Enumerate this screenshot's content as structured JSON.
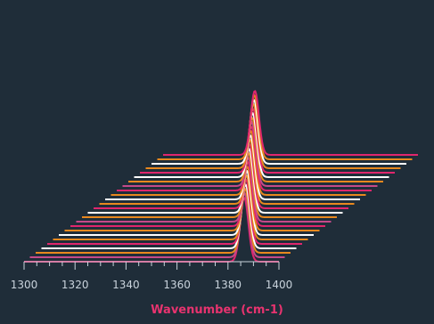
{
  "chart_data": {
    "type": "line",
    "subtype": "waterfall-3d",
    "title": "",
    "xlabel": "Wavenumber (cm-1)",
    "ylabel": "",
    "xlim": [
      1300,
      1400
    ],
    "xticks": [
      1300,
      1320,
      1340,
      1360,
      1380,
      1400
    ],
    "peak_height": 1.0,
    "peak_width_cm1": 1.6,
    "grid": false,
    "legend": "none",
    "palette": [
      "#e0266d",
      "#e8881e",
      "#ffffff",
      "#e8881e",
      "#e0266d",
      "#ffffff",
      "#e8881e",
      "#c44a8a"
    ],
    "series": [
      {
        "color": "#e0266d",
        "peak": 1336.0
      },
      {
        "color": "#e8881e",
        "peak": 1338.1
      },
      {
        "color": "#ffffff",
        "peak": 1340.2
      },
      {
        "color": "#e8881e",
        "peak": 1342.3
      },
      {
        "color": "#e0266d",
        "peak": 1344.4
      },
      {
        "color": "#ffffff",
        "peak": 1346.5
      },
      {
        "color": "#e8881e",
        "peak": 1348.6
      },
      {
        "color": "#c44a8a",
        "peak": 1350.7
      },
      {
        "color": "#e0266d",
        "peak": 1352.8
      },
      {
        "color": "#e8881e",
        "peak": 1354.9
      },
      {
        "color": "#ffffff",
        "peak": 1357.0
      },
      {
        "color": "#e8881e",
        "peak": 1359.1
      },
      {
        "color": "#e0266d",
        "peak": 1361.2
      },
      {
        "color": "#ffffff",
        "peak": 1363.3
      },
      {
        "color": "#e8881e",
        "peak": 1365.4
      },
      {
        "color": "#c44a8a",
        "peak": 1367.5
      },
      {
        "color": "#e0266d",
        "peak": 1369.6
      },
      {
        "color": "#e8881e",
        "peak": 1371.7
      },
      {
        "color": "#ffffff",
        "peak": 1373.8
      },
      {
        "color": "#e8881e",
        "peak": 1375.9
      },
      {
        "color": "#e0266d",
        "peak": 1378.0
      },
      {
        "color": "#ffffff",
        "peak": 1380.1
      },
      {
        "color": "#e8881e",
        "peak": 1382.2
      },
      {
        "color": "#c44a8a",
        "peak": 1384.3
      },
      {
        "color": "#e0266d",
        "peak": 1386.4
      }
    ]
  }
}
